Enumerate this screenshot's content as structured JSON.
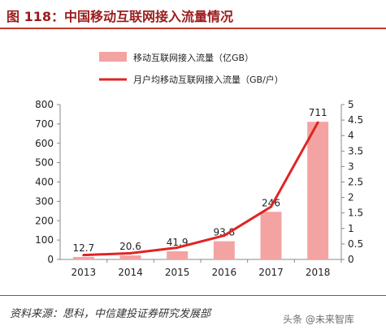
{
  "title": "图 118：中国移动互联网接入流量情况",
  "source": "资料来源：思科，中信建投证券研究发展部",
  "watermark": "头条 @未来智库",
  "colors": {
    "bar": "#f4a3a3",
    "line": "#e02424",
    "title": "#9b1c1c",
    "rule": "#c0392b"
  },
  "chart_data": {
    "type": "bar+line",
    "categories": [
      "2013",
      "2014",
      "2015",
      "2016",
      "2017",
      "2018"
    ],
    "series": [
      {
        "name": "移动互联网接入流量（亿GB）",
        "type": "bar",
        "axis": "left",
        "values": [
          12.7,
          20.6,
          41.9,
          93.8,
          246,
          711
        ],
        "labels": [
          "12.7",
          "20.6",
          "41.9",
          "93.8",
          "246",
          "711"
        ]
      },
      {
        "name": "月户均移动互联网接入流量（GB/户）",
        "type": "line",
        "axis": "right",
        "values": [
          0.14,
          0.2,
          0.38,
          0.77,
          1.7,
          4.42
        ]
      }
    ],
    "y_left": {
      "min": 0,
      "max": 800,
      "ticks": [
        "0",
        "100",
        "200",
        "300",
        "400",
        "500",
        "600",
        "700",
        "800"
      ]
    },
    "y_right": {
      "min": 0,
      "max": 5,
      "ticks": [
        "0",
        "0.5",
        "1",
        "1.5",
        "2",
        "2.5",
        "3",
        "3.5",
        "4",
        "4.5",
        "5"
      ]
    },
    "legend_position": "top-center",
    "grid": false
  }
}
